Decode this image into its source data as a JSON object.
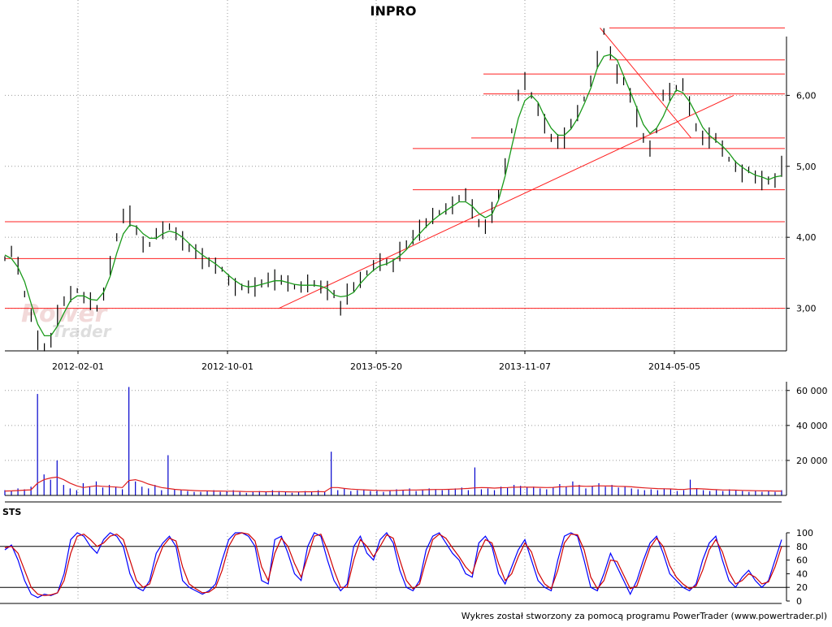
{
  "chart_data": [
    {
      "type": "line",
      "title": "INPRO",
      "xlabel": "",
      "ylabel": "",
      "x_ticks": [
        "2012-02-01",
        "2012-10-01",
        "2013-05-20",
        "2013-11-07",
        "2014-05-05"
      ],
      "y_ticks": [
        "3,00",
        "4,00",
        "5,00",
        "6,00"
      ],
      "ylim": [
        2.4,
        7.0
      ],
      "grid": true,
      "watermark": [
        "Power",
        "Trader"
      ],
      "series": [
        {
          "values": [
            3.7,
            3.8,
            3.6,
            3.2,
            2.9,
            2.55,
            2.45,
            2.55,
            2.9,
            3.1,
            3.2,
            3.25,
            3.15,
            3.1,
            3.0,
            3.2,
            3.6,
            4.0,
            4.3,
            4.3,
            4.1,
            3.9,
            3.9,
            4.05,
            4.1,
            4.15,
            4.05,
            3.95,
            3.85,
            3.8,
            3.7,
            3.65,
            3.6,
            3.55,
            3.4,
            3.3,
            3.3,
            3.3,
            3.3,
            3.35,
            3.4,
            3.4,
            3.4,
            3.35,
            3.3,
            3.3,
            3.35,
            3.35,
            3.3,
            3.25,
            3.2,
            3.0,
            3.2,
            3.3,
            3.4,
            3.5,
            3.6,
            3.65,
            3.65,
            3.6,
            3.8,
            3.9,
            4.0,
            4.1,
            4.2,
            4.3,
            4.35,
            4.4,
            4.45,
            4.55,
            4.6,
            4.4,
            4.2,
            4.15,
            4.35,
            4.6,
            5.0,
            5.5,
            6.0,
            6.2,
            6.0,
            5.8,
            5.6,
            5.4,
            5.35,
            5.4,
            5.6,
            5.75,
            5.95,
            6.2,
            6.5,
            6.9,
            6.6,
            6.3,
            6.2,
            6.0,
            5.7,
            5.4,
            5.25,
            5.5,
            6.0,
            6.05,
            6.1,
            6.15,
            5.85,
            5.55,
            5.4,
            5.4,
            5.4,
            5.25,
            5.1,
            5.0,
            4.9,
            4.95,
            4.85,
            4.8,
            4.8,
            4.8,
            5.0
          ]
        }
      ],
      "horizontal_levels": [
        6.95,
        6.5,
        6.3,
        6.02,
        5.4,
        5.25,
        4.67,
        4.22,
        3.7,
        3.0
      ],
      "trendlines": [
        {
          "from": [
            "2012-12-20",
            3.0
          ],
          "to": [
            "2014-07-15",
            6.0
          ]
        },
        {
          "from": [
            "2014-02-05",
            6.95
          ],
          "to": [
            "2014-05-25",
            5.4
          ]
        }
      ]
    },
    {
      "type": "bar",
      "title": "",
      "y_ticks": [
        "20 000",
        "40 000",
        "60 000"
      ],
      "ylim": [
        0,
        65000
      ],
      "grid": true,
      "values": [
        3000,
        2500,
        4000,
        3500,
        5000,
        58000,
        12000,
        9000,
        20000,
        6000,
        4000,
        3000,
        7000,
        5000,
        8000,
        4500,
        6000,
        5000,
        3500,
        62000,
        8000,
        5000,
        4000,
        6000,
        3000,
        23000,
        3500,
        3000,
        2500,
        2000,
        2000,
        2500,
        3000,
        2000,
        2500,
        3000,
        2000,
        1500,
        2000,
        2500,
        2000,
        3000,
        2500,
        2000,
        1500,
        2000,
        2500,
        2000,
        3000,
        2000,
        25000,
        3000,
        4000,
        2500,
        3000,
        3500,
        2500,
        3000,
        2000,
        2500,
        3500,
        3000,
        4000,
        2500,
        3000,
        4000,
        3500,
        3000,
        3500,
        4000,
        4500,
        3000,
        16000,
        3500,
        4000,
        3000,
        5000,
        4500,
        6000,
        5500,
        4500,
        5000,
        4000,
        3500,
        4500,
        6500,
        5000,
        8000,
        6000,
        4000,
        5500,
        7000,
        5000,
        6000,
        4500,
        5000,
        4000,
        3500,
        3000,
        3500,
        3000,
        4000,
        3500,
        2500,
        3000,
        9000,
        4000,
        3000,
        2500,
        3000,
        2500,
        3500,
        3000,
        2500,
        2000,
        2500,
        2000,
        2500,
        2000,
        3000
      ],
      "average": [
        2500,
        2600,
        2800,
        3000,
        3200,
        7000,
        9000,
        10000,
        10500,
        9000,
        7000,
        5500,
        4500,
        5000,
        5500,
        5200,
        5000,
        4800,
        4500,
        8500,
        9000,
        8000,
        6500,
        5500,
        4500,
        4000,
        3500,
        3200,
        3000,
        2800,
        2600,
        2600,
        2500,
        2500,
        2400,
        2400,
        2300,
        2200,
        2200,
        2200,
        2100,
        2200,
        2200,
        2100,
        2000,
        2000,
        2100,
        2100,
        2200,
        2100,
        4500,
        4500,
        4000,
        3600,
        3400,
        3200,
        3000,
        2900,
        2800,
        2800,
        2900,
        3000,
        3100,
        3100,
        3200,
        3300,
        3400,
        3400,
        3500,
        3600,
        3800,
        4000,
        4300,
        4500,
        4400,
        4200,
        4400,
        4500,
        4700,
        4800,
        4700,
        4700,
        4600,
        4500,
        4600,
        4900,
        5000,
        5300,
        5400,
        5200,
        5300,
        5500,
        5400,
        5400,
        5200,
        5100,
        4900,
        4600,
        4300,
        4100,
        3900,
        3800,
        3700,
        3500,
        3400,
        3800,
        3900,
        3700,
        3500,
        3300,
        3100,
        3100,
        3000,
        2900,
        2800,
        2700,
        2600,
        2600,
        2500,
        2500
      ]
    },
    {
      "type": "line",
      "title": "STS",
      "y_ticks": [
        "0",
        "20",
        "40",
        "60",
        "80",
        "100"
      ],
      "ylim": [
        0,
        100
      ],
      "reference_lines": [
        20,
        80
      ],
      "series": [
        {
          "color": "#0000ff",
          "values": [
            75,
            82,
            60,
            30,
            10,
            5,
            10,
            8,
            12,
            40,
            90,
            100,
            95,
            80,
            70,
            90,
            100,
            95,
            80,
            40,
            20,
            15,
            30,
            70,
            85,
            95,
            80,
            30,
            20,
            15,
            10,
            15,
            25,
            60,
            90,
            100,
            100,
            95,
            80,
            30,
            25,
            90,
            95,
            70,
            40,
            30,
            80,
            100,
            95,
            60,
            30,
            15,
            25,
            80,
            95,
            70,
            60,
            90,
            100,
            85,
            45,
            20,
            15,
            30,
            75,
            95,
            100,
            85,
            70,
            60,
            40,
            35,
            85,
            95,
            80,
            40,
            25,
            50,
            75,
            90,
            60,
            30,
            20,
            15,
            60,
            95,
            100,
            95,
            60,
            20,
            15,
            40,
            70,
            50,
            30,
            10,
            30,
            60,
            85,
            95,
            70,
            40,
            30,
            20,
            15,
            25,
            60,
            85,
            95,
            60,
            30,
            20,
            35,
            45,
            30,
            20,
            30,
            60,
            90
          ]
        },
        {
          "color": "#d00000",
          "values": [
            78,
            80,
            70,
            45,
            20,
            10,
            8,
            9,
            12,
            30,
            70,
            95,
            98,
            90,
            80,
            85,
            95,
            98,
            90,
            60,
            30,
            20,
            25,
            55,
            80,
            92,
            88,
            50,
            25,
            18,
            12,
            13,
            20,
            45,
            80,
            97,
            100,
            98,
            88,
            50,
            30,
            70,
            92,
            80,
            55,
            35,
            65,
            95,
            98,
            75,
            45,
            20,
            20,
            60,
            90,
            80,
            65,
            80,
            97,
            92,
            60,
            30,
            18,
            25,
            60,
            90,
            98,
            92,
            78,
            65,
            50,
            40,
            70,
            90,
            85,
            55,
            30,
            40,
            65,
            85,
            72,
            42,
            25,
            18,
            45,
            85,
            98,
            97,
            75,
            35,
            18,
            30,
            60,
            58,
            38,
            18,
            22,
            50,
            78,
            92,
            80,
            52,
            35,
            25,
            18,
            22,
            45,
            75,
            90,
            72,
            42,
            25,
            30,
            40,
            35,
            25,
            28,
            50,
            80
          ]
        }
      ]
    }
  ],
  "footer": "Wykres został stworzony za pomocą programu PowerTrader (www.powertrader.pl)"
}
